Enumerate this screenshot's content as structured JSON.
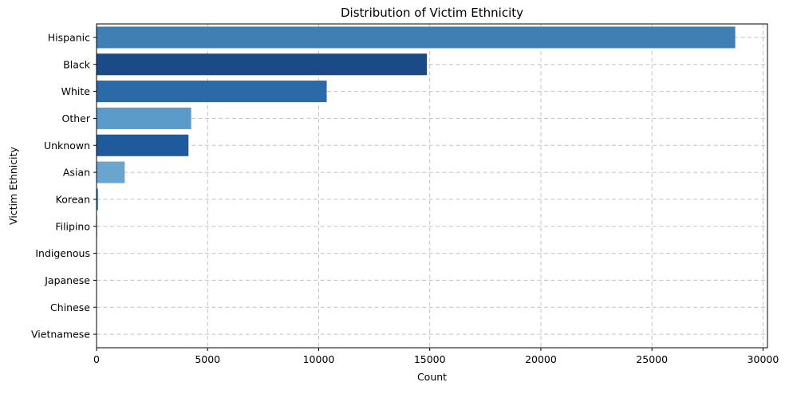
{
  "chart_data": {
    "type": "bar",
    "orientation": "horizontal",
    "title": "Distribution of Victim Ethnicity",
    "xlabel": "Count",
    "ylabel": "Victim Ethnicity",
    "categories": [
      "Hispanic",
      "Black",
      "White",
      "Other",
      "Unknown",
      "Asian",
      "Korean",
      "Filipino",
      "Indigenous",
      "Japanese",
      "Chinese",
      "Vietnamese"
    ],
    "values": [
      28750,
      14870,
      10360,
      4260,
      4140,
      1270,
      70,
      30,
      10,
      10,
      5,
      2
    ],
    "colors": [
      "#3f7fb4",
      "#1a4b86",
      "#2b6aa8",
      "#5b9bc9",
      "#1f5a9c",
      "#6aa5d0",
      "#4a8bc0",
      "#8fbedd",
      "#a8cde6",
      "#b9d7eb",
      "#c8def0",
      "#d4e5f3"
    ],
    "xlim": [
      0,
      30200
    ],
    "xticks": [
      0,
      5000,
      10000,
      15000,
      20000,
      25000,
      30000
    ],
    "xtick_labels": [
      "0",
      "5000",
      "10000",
      "15000",
      "20000",
      "25000",
      "30000"
    ],
    "grid": true,
    "legend": "none"
  }
}
